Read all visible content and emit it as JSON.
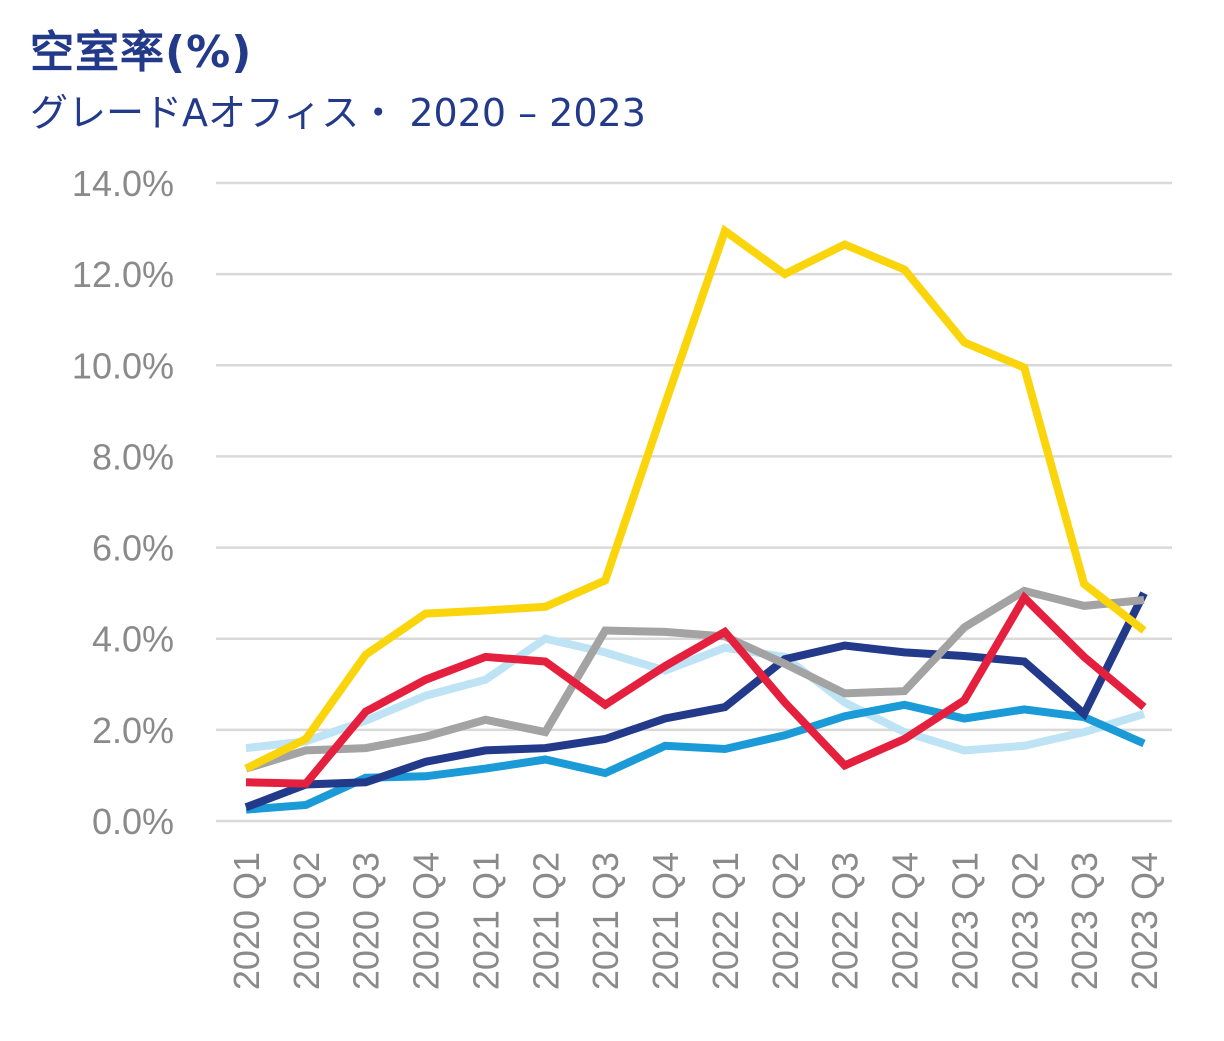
{
  "header": {
    "title": "空室率(%)",
    "subtitle": "グレードAオフィス・ 2020 – 2023"
  },
  "chart_data": {
    "type": "line",
    "title": "空室率(%)",
    "subtitle": "グレードAオフィス・ 2020 – 2023",
    "xlabel": "",
    "ylabel": "",
    "ylim": [
      0,
      14
    ],
    "ytick_values": [
      0,
      2,
      4,
      6,
      8,
      10,
      12,
      14
    ],
    "ytick_labels": [
      "0.0%",
      "2.0%",
      "4.0%",
      "6.0%",
      "8.0%",
      "10.0%",
      "12.0%",
      "14.0%"
    ],
    "grid": true,
    "legend": "none",
    "categories": [
      "2020 Q1",
      "2020 Q2",
      "2020 Q3",
      "2020 Q4",
      "2021 Q1",
      "2021 Q2",
      "2021 Q3",
      "2021 Q4",
      "2022 Q1",
      "2022 Q2",
      "2022 Q3",
      "2022 Q4",
      "2023 Q1",
      "2023 Q2",
      "2023 Q3",
      "2023 Q4"
    ],
    "series": [
      {
        "name": "light-blue",
        "color": "#bde3f4",
        "values": [
          1.6,
          1.75,
          2.2,
          2.75,
          3.1,
          4.0,
          3.7,
          3.3,
          3.8,
          3.6,
          2.6,
          1.95,
          1.55,
          1.65,
          1.95,
          2.35
        ]
      },
      {
        "name": "blue",
        "color": "#1a9ad6",
        "values": [
          0.25,
          0.35,
          0.95,
          0.98,
          1.15,
          1.35,
          1.05,
          1.65,
          1.58,
          1.88,
          2.3,
          2.55,
          2.25,
          2.45,
          2.28,
          1.7
        ]
      },
      {
        "name": "navy",
        "color": "#233a8b",
        "values": [
          0.3,
          0.8,
          0.85,
          1.3,
          1.55,
          1.6,
          1.8,
          2.25,
          2.5,
          3.55,
          3.85,
          3.7,
          3.62,
          3.5,
          2.35,
          5.0
        ]
      },
      {
        "name": "grey",
        "color": "#a3a3a3",
        "values": [
          1.15,
          1.55,
          1.6,
          1.85,
          2.22,
          1.95,
          4.18,
          4.15,
          4.05,
          3.45,
          2.8,
          2.85,
          4.25,
          5.05,
          4.72,
          4.85
        ]
      },
      {
        "name": "red",
        "color": "#e4203e",
        "values": [
          0.85,
          0.82,
          2.4,
          3.1,
          3.6,
          3.5,
          2.55,
          3.4,
          4.15,
          2.6,
          1.22,
          1.8,
          2.65,
          4.9,
          3.6,
          2.5
        ]
      },
      {
        "name": "yellow",
        "color": "#fad50c",
        "values": [
          1.15,
          1.8,
          3.65,
          4.55,
          4.62,
          4.7,
          5.28,
          9.15,
          12.95,
          12.0,
          12.65,
          12.1,
          10.5,
          9.95,
          5.2,
          4.18
        ]
      }
    ]
  }
}
